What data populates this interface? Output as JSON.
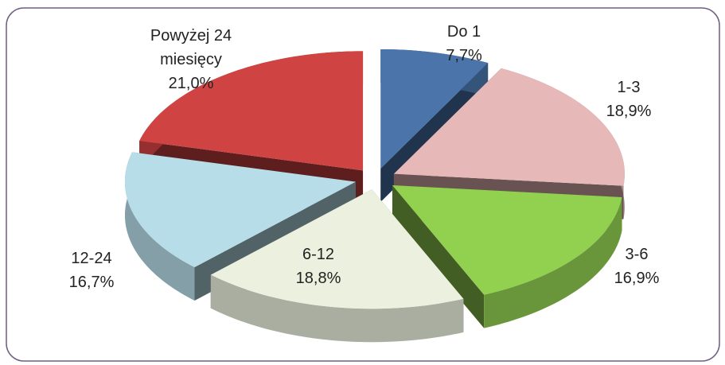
{
  "chart_data": {
    "type": "pie",
    "categories": [
      "Do 1",
      "1-3",
      "3-6",
      "6-12",
      "12-24",
      "Powyżej 24 miesięcy"
    ],
    "values": [
      7.7,
      18.9,
      16.9,
      18.8,
      16.7,
      21.0
    ],
    "value_labels": [
      "7,7%",
      "18,9%",
      "16,9%",
      "18,8%",
      "16,7%",
      "21,0%"
    ],
    "colors": [
      "#4a74aa",
      "#e6b8b7",
      "#92d050",
      "#ebf1de",
      "#b7dde8",
      "#d04343"
    ]
  }
}
